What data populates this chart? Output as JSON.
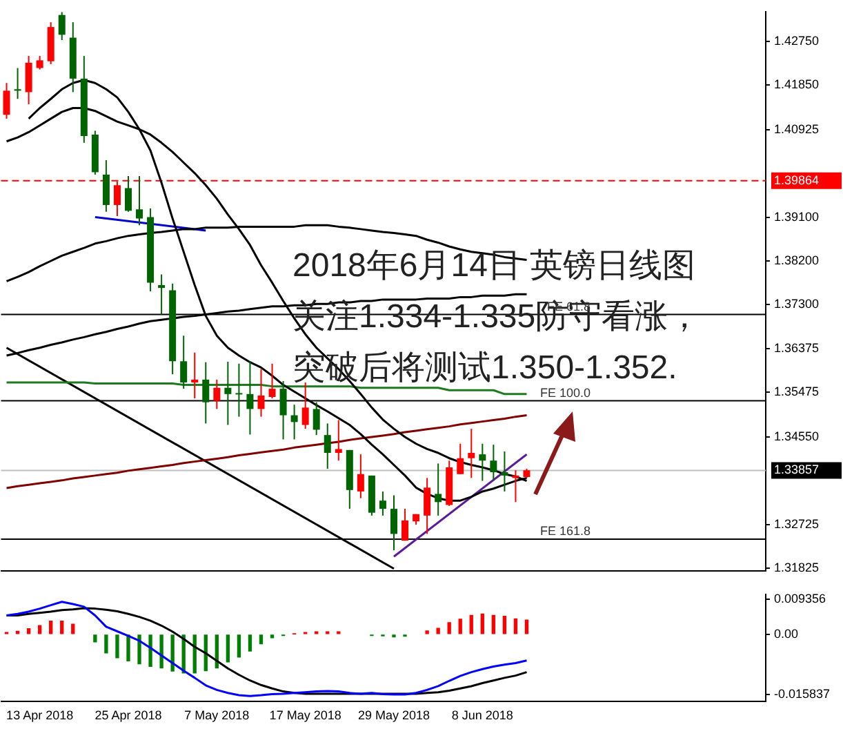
{
  "chart_data": [
    {
      "type": "candlestick",
      "annotations": [
        "2018年6月14日 英镑日线图",
        "关注1.334-1.335防守看涨，",
        "突破后将测试1.350-1.352.",
        {
          "text": "FE 61.8",
          "y": 1.3709
        },
        {
          "text": "FE 100.0",
          "y": 1.353
        },
        {
          "text": "FE 161.8",
          "y": 1.3243
        }
      ],
      "categories": [
        null,
        null,
        null,
        null,
        null,
        null,
        null,
        null,
        null,
        null,
        null,
        null,
        null,
        null,
        null,
        null,
        null,
        null,
        null,
        null,
        null,
        null,
        null,
        null,
        null,
        null,
        null,
        null,
        null,
        null,
        null,
        null,
        null,
        null,
        null,
        null,
        null,
        null,
        null,
        null,
        null,
        null,
        null,
        null,
        null,
        null,
        null,
        null
      ],
      "ohlc": [
        [
          1.4123,
          1.4189,
          1.4115,
          1.4173
        ],
        [
          1.4176,
          1.422,
          1.4156,
          1.4173
        ],
        [
          1.417,
          1.4245,
          1.4145,
          1.4231
        ],
        [
          1.422,
          1.4245,
          1.4217,
          1.4236
        ],
        [
          1.4234,
          1.4315,
          1.4228,
          1.4305
        ],
        [
          1.433,
          1.4336,
          1.4278,
          1.4289
        ],
        [
          1.4283,
          1.4315,
          1.417,
          1.4198
        ],
        [
          1.4198,
          1.4245,
          1.4065,
          1.4079
        ],
        [
          1.4082,
          1.409,
          1.3999,
          1.4004
        ],
        [
          1.3999,
          1.4029,
          1.3922,
          1.3936
        ],
        [
          1.3936,
          1.3985,
          1.3913,
          1.3977
        ],
        [
          1.3971,
          1.3996,
          1.3922,
          1.3924
        ],
        [
          1.3927,
          1.3996,
          1.3894,
          1.3908
        ],
        [
          1.3911,
          1.3929,
          1.3757,
          1.3775
        ],
        [
          1.377,
          1.3792,
          1.3709,
          1.3764
        ],
        [
          1.3759,
          1.3773,
          1.3585,
          1.3612
        ],
        [
          1.3612,
          1.3665,
          1.3555,
          1.3568
        ],
        [
          1.3568,
          1.363,
          1.3535,
          1.3574
        ],
        [
          1.3574,
          1.361,
          1.3483,
          1.3527
        ],
        [
          1.353,
          1.3574,
          1.3513,
          1.3557
        ],
        [
          1.3557,
          1.3611,
          1.348,
          1.3544
        ],
        [
          1.3546,
          1.3607,
          1.3497,
          1.3544
        ],
        [
          1.3544,
          1.3612,
          1.346,
          1.3513
        ],
        [
          1.3513,
          1.3596,
          1.3497,
          1.3541
        ],
        [
          1.3538,
          1.3607,
          1.3535,
          1.3555
        ],
        [
          1.3555,
          1.3571,
          1.345,
          1.35
        ],
        [
          1.35,
          1.3522,
          1.345,
          1.3486
        ],
        [
          1.348,
          1.3568,
          1.3472,
          1.3516
        ],
        [
          1.3513,
          1.3527,
          1.3459,
          1.347
        ],
        [
          1.3459,
          1.3483,
          1.3389,
          1.3422
        ],
        [
          1.3422,
          1.349,
          1.3406,
          1.343
        ],
        [
          1.3428,
          1.3428,
          1.3306,
          1.3345
        ],
        [
          1.3342,
          1.3419,
          1.3328,
          1.3378
        ],
        [
          1.3375,
          1.3375,
          1.3292,
          1.3298
        ],
        [
          1.3323,
          1.3342,
          1.3292,
          1.3306
        ],
        [
          1.3306,
          1.3334,
          1.322,
          1.3254
        ],
        [
          1.324,
          1.3306,
          1.324,
          1.3282
        ],
        [
          1.328,
          1.3295,
          1.3273,
          1.3295
        ],
        [
          1.3292,
          1.337,
          1.3254,
          1.335
        ],
        [
          1.3337,
          1.34,
          1.3292,
          1.332
        ],
        [
          1.3314,
          1.3406,
          1.3312,
          1.3392
        ],
        [
          1.3378,
          1.3441,
          1.3378,
          1.3411
        ],
        [
          1.3411,
          1.3472,
          1.337,
          1.3422
        ],
        [
          1.3419,
          1.3441,
          1.3364,
          1.3406
        ],
        [
          1.3406,
          1.3439,
          1.3364,
          1.3382
        ],
        [
          1.3382,
          1.3425,
          1.3342,
          1.3375
        ],
        [
          1.337,
          1.3386,
          1.332,
          1.3375
        ],
        [
          1.3372,
          1.3389,
          1.337,
          1.3386
        ]
      ],
      "colors": [
        "#ff0000",
        "#006400",
        "#ff0000",
        "#ff0000",
        "#ff0000",
        "#006400",
        "#006400",
        "#006400",
        "#006400",
        "#006400",
        "#ff0000",
        "#006400",
        "#006400",
        "#006400",
        "#006400",
        "#006400",
        "#006400",
        "#ff0000",
        "#006400",
        "#ff0000",
        "#006400",
        "#006400",
        "#006400",
        "#ff0000",
        "#ff0000",
        "#006400",
        "#006400",
        "#ff0000",
        "#006400",
        "#006400",
        "#ff0000",
        "#006400",
        "#ff0000",
        "#006400",
        "#006400",
        "#006400",
        "#ff0000",
        "#ff0000",
        "#ff0000",
        "#006400",
        "#ff0000",
        "#ff0000",
        "#ff0000",
        "#006400",
        "#006400",
        "#006400",
        "#ff0000",
        "#ff0000"
      ],
      "series": [
        {
          "type": "line",
          "color": "#000000",
          "values": [
            null,
            null,
            1.4115,
            1.4137,
            1.4156,
            1.4176,
            1.4189,
            1.4195,
            1.4189,
            1.4176,
            1.4159,
            1.4129,
            1.4093,
            1.4049,
            1.3982,
            1.3908,
            1.3839,
            1.377,
            1.3706,
            1.3665,
            1.364,
            1.3624,
            1.361,
            1.3599,
            1.3582,
            1.3563,
            1.3549,
            1.3535,
            1.3521,
            1.3508,
            1.3494,
            1.348,
            1.3461,
            1.3439,
            1.3419,
            1.3397,
            1.3375,
            1.335,
            1.3337,
            1.3328,
            1.3323,
            1.3323,
            1.3331,
            1.3342,
            1.3348,
            1.3356,
            1.3364,
            1.337
          ]
        },
        {
          "type": "line",
          "color": "#000000",
          "values": [
            1.4068,
            1.4076,
            1.4087,
            1.4101,
            1.4115,
            1.4129,
            1.4137,
            1.4137,
            1.4131,
            1.412,
            1.4109,
            1.4101,
            1.4093,
            1.4082,
            1.4065,
            1.4046,
            1.4024,
            1.4002,
            1.3977,
            1.3949,
            1.3916,
            1.3886,
            1.3853,
            1.3811,
            1.3775,
            1.3737,
            1.3701,
            1.3668,
            1.364,
            1.3618,
            1.3596,
            1.3571,
            1.3544,
            1.3516,
            1.3491,
            1.3472,
            1.3455,
            1.3441,
            1.343,
            1.3422,
            1.3411,
            1.3403,
            1.3397,
            1.3392,
            1.3386,
            1.3378,
            1.3373,
            1.3364
          ]
        },
        {
          "type": "line",
          "color": "#000000",
          "values": [
            1.3778,
            1.3787,
            1.3797,
            1.3809,
            1.382,
            1.3831,
            1.3839,
            1.3847,
            1.3856,
            1.3861,
            1.3867,
            1.3872,
            1.3875,
            1.3878,
            1.388,
            1.3883,
            1.3886,
            1.3886,
            1.3889,
            1.3889,
            1.3889,
            1.3891,
            1.3891,
            1.3891,
            1.3891,
            1.3891,
            1.3891,
            1.3894,
            1.3894,
            1.3894,
            1.3891,
            1.3889,
            1.3886,
            1.3883,
            1.388,
            1.3878,
            1.3875,
            1.3872,
            1.3864,
            1.3858,
            1.385,
            1.3844,
            1.3839,
            1.3836,
            1.3833,
            1.3828,
            1.3825,
            1.3822
          ]
        },
        {
          "type": "line",
          "color": "#000000",
          "values": [
            1.3624,
            1.3629,
            1.3635,
            1.364,
            1.3646,
            1.3651,
            1.3657,
            1.3662,
            1.3668,
            1.3673,
            1.3679,
            1.3684,
            1.369,
            1.3695,
            1.3698,
            1.3701,
            1.3704,
            1.3706,
            1.3709,
            1.3712,
            1.3715,
            1.3717,
            1.372,
            1.3723,
            1.3726,
            1.3726,
            1.3728,
            1.3728,
            1.3731,
            1.3731,
            1.3734,
            1.3734,
            1.3737,
            1.3737,
            1.374,
            1.374,
            1.374,
            1.374,
            1.3742,
            1.3742,
            1.3742,
            1.3745,
            1.3745,
            1.3748,
            1.3748,
            1.3748,
            1.3751,
            1.3751
          ]
        },
        {
          "type": "line",
          "color": "#1e7a1e",
          "values": [
            1.3568,
            1.3568,
            1.3568,
            1.3568,
            1.3568,
            1.3568,
            1.3568,
            1.3568,
            1.3566,
            1.3566,
            1.3566,
            1.3566,
            1.3566,
            1.3566,
            1.3566,
            1.3566,
            1.3563,
            1.3563,
            1.3563,
            1.3563,
            1.3563,
            1.3563,
            1.3563,
            1.3563,
            1.356,
            1.356,
            1.356,
            1.356,
            1.356,
            1.356,
            1.356,
            1.356,
            1.3557,
            1.3557,
            1.3557,
            1.3557,
            1.3557,
            1.3557,
            1.3557,
            1.3557,
            1.3552,
            1.3552,
            1.3552,
            1.3552,
            1.3552,
            1.3544,
            1.3544,
            1.3544
          ]
        },
        {
          "type": "line",
          "color": "#800000",
          "values": [
            1.3349,
            1.3353,
            1.3356,
            1.3359,
            1.3362,
            1.3365,
            1.3369,
            1.3372,
            1.3375,
            1.3378,
            1.3381,
            1.3385,
            1.3388,
            1.3391,
            1.3394,
            1.3397,
            1.3401,
            1.3404,
            1.3407,
            1.341,
            1.3413,
            1.3417,
            1.342,
            1.3423,
            1.3426,
            1.3429,
            1.3433,
            1.3436,
            1.3439,
            1.3442,
            1.3445,
            1.3449,
            1.3452,
            1.3455,
            1.3458,
            1.3461,
            1.3465,
            1.3468,
            1.3471,
            1.3474,
            1.3477,
            1.3481,
            1.3484,
            1.3487,
            1.349,
            1.3493,
            1.3497,
            1.35
          ]
        },
        {
          "type": "line",
          "color": "#0000cd",
          "values": [
            null,
            null,
            null,
            null,
            null,
            null,
            null,
            null,
            1.3911,
            null,
            null,
            null,
            null,
            null,
            null,
            null,
            null,
            null,
            1.3883,
            null,
            null,
            null,
            null,
            null,
            null,
            null,
            null,
            null,
            null,
            null,
            null,
            null,
            null,
            null,
            null,
            null,
            null,
            null,
            null,
            null,
            null,
            null,
            null,
            null,
            null,
            null,
            null,
            null
          ]
        },
        {
          "type": "line",
          "color": "#000000",
          "values": [
            1.364,
            null,
            null,
            null,
            null,
            null,
            null,
            null,
            null,
            null,
            null,
            null,
            null,
            null,
            null,
            null,
            null,
            null,
            null,
            null,
            null,
            null,
            null,
            null,
            null,
            null,
            null,
            null,
            null,
            null,
            null,
            null,
            null,
            null,
            null,
            1.3182,
            null,
            null,
            null,
            null,
            null,
            null,
            null,
            null,
            null,
            null,
            null,
            null
          ]
        },
        {
          "type": "line",
          "color": "#5a1a9a",
          "values": [
            null,
            null,
            null,
            null,
            null,
            null,
            null,
            null,
            null,
            null,
            null,
            null,
            null,
            null,
            null,
            null,
            null,
            null,
            null,
            null,
            null,
            null,
            null,
            null,
            null,
            null,
            null,
            null,
            null,
            null,
            null,
            null,
            null,
            null,
            null,
            1.3207,
            null,
            null,
            null,
            null,
            null,
            null,
            null,
            null,
            null,
            null,
            null,
            1.3419
          ]
        }
      ],
      "ylim": [
        1.3177,
        1.4337
      ],
      "yticks": [
        {
          "value": 1.31825,
          "label": "1.31825"
        },
        {
          "value": 1.32725,
          "label": "1.32725"
        },
        {
          "value": 1.3455,
          "label": "1.34550"
        },
        {
          "value": 1.35475,
          "label": "1.35475"
        },
        {
          "value": 1.36375,
          "label": "1.36375"
        },
        {
          "value": 1.373,
          "label": "1.37300"
        },
        {
          "value": 1.382,
          "label": "1.38200"
        },
        {
          "value": 1.391,
          "label": "1.39100"
        },
        {
          "value": 1.40925,
          "label": "1.40925"
        },
        {
          "value": 1.4185,
          "label": "1.41850"
        },
        {
          "value": 1.4275,
          "label": "1.42750"
        }
      ],
      "ref_lines": [
        {
          "axis": "y",
          "value": 1.3709,
          "color": "#000000"
        },
        {
          "axis": "y",
          "value": 1.353,
          "color": "#000000"
        },
        {
          "axis": "y",
          "value": 1.3243,
          "color": "#000000"
        },
        {
          "axis": "y",
          "value": 1.39864,
          "label": "1.39864",
          "color": "#ff0000",
          "line_style": "dashed"
        },
        {
          "axis": "y",
          "value": 1.33857,
          "label": "1.33857",
          "color": "#c0c0c0"
        }
      ],
      "tick_labels": "y"
    },
    {
      "type": "bar",
      "categories": [
        null,
        null,
        null,
        "13 Apr 2018",
        null,
        null,
        null,
        null,
        null,
        null,
        null,
        "25 Apr 2018",
        null,
        null,
        null,
        null,
        null,
        null,
        null,
        "7 May 2018",
        null,
        null,
        null,
        null,
        null,
        null,
        null,
        "17 May 2018",
        null,
        null,
        null,
        null,
        null,
        null,
        null,
        "29 May 2018",
        null,
        null,
        null,
        null,
        null,
        null,
        null,
        "8 Jun 2018",
        null,
        null,
        null,
        null
      ],
      "series": [
        {
          "type": "bar",
          "colors": [
            "#ff0000",
            "#ff0000",
            "#ff0000",
            "#ff0000",
            "#ff0000",
            "#ff0000",
            "#ff0000",
            "#ff0000",
            "#008000",
            "#008000",
            "#008000",
            "#008000",
            "#008000",
            "#008000",
            "#008000",
            "#008000",
            "#008000",
            "#008000",
            "#008000",
            "#008000",
            "#008000",
            "#008000",
            "#008000",
            "#008000",
            "#008000",
            "#008000",
            "#ff0000",
            "#ff0000",
            "#ff0000",
            "#ff0000",
            "#ff0000",
            "#ff0000",
            "#ff0000",
            "#008000",
            "#008000",
            "#008000",
            "#008000",
            "#ff0000",
            "#ff0000",
            "#ff0000",
            "#ff0000",
            "#ff0000",
            "#ff0000",
            "#ff0000",
            "#ff0000",
            "#ff0000",
            "#ff0000",
            "#ff0000"
          ],
          "values": [
            0.0005,
            0.0008,
            0.0015,
            0.0023,
            0.0035,
            0.0035,
            0.0027,
            null,
            -0.002,
            -0.0049,
            -0.0062,
            -0.007,
            -0.0078,
            -0.0085,
            -0.0089,
            -0.0097,
            -0.0102,
            -0.0102,
            -0.0096,
            -0.0089,
            -0.0073,
            -0.006,
            -0.0044,
            -0.0025,
            -0.0009,
            -0.0003,
            0.0001,
            0.0005,
            0.0007,
            0.0007,
            0.0007,
            null,
            null,
            -0.0003,
            -0.0004,
            -0.0007,
            -0.0005,
            null,
            0.0009,
            0.0016,
            0.0031,
            0.004,
            0.005,
            0.0054,
            0.005,
            0.0048,
            0.0041,
            0.0038
          ]
        },
        {
          "type": "line",
          "color": "#0000ff",
          "values": [
            0.005,
            0.0054,
            0.006,
            0.0068,
            0.0077,
            0.0086,
            0.008,
            0.0073,
            0.005,
            0.002,
            0.0008,
            -0.0004,
            -0.0017,
            -0.0036,
            -0.0056,
            -0.0076,
            -0.0096,
            -0.0115,
            -0.0135,
            -0.0147,
            -0.0155,
            -0.0161,
            -0.0163,
            -0.0161,
            -0.0158,
            -0.0157,
            -0.0155,
            -0.0153,
            -0.0151,
            -0.015,
            -0.0151,
            -0.0155,
            -0.0157,
            -0.0155,
            -0.0158,
            -0.0159,
            -0.0159,
            -0.0155,
            -0.0147,
            -0.0137,
            -0.0123,
            -0.011,
            -0.01,
            -0.0092,
            -0.0085,
            -0.008,
            -0.0076,
            -0.0069
          ]
        },
        {
          "type": "line",
          "color": "#000000",
          "values": [
            0.005,
            0.005,
            0.0054,
            0.0057,
            0.006,
            0.0064,
            0.0066,
            0.0069,
            0.0068,
            0.0065,
            0.0061,
            0.0054,
            0.0046,
            0.0036,
            0.0023,
            0.0007,
            -0.0012,
            -0.0033,
            -0.005,
            -0.007,
            -0.009,
            -0.0107,
            -0.0122,
            -0.0134,
            -0.0143,
            -0.0151,
            -0.0155,
            -0.0157,
            -0.0157,
            -0.0157,
            -0.0157,
            -0.0157,
            -0.0157,
            -0.0157,
            -0.0157,
            -0.0157,
            -0.0157,
            -0.0157,
            -0.0155,
            -0.0153,
            -0.0149,
            -0.0143,
            -0.0137,
            -0.0129,
            -0.0122,
            -0.0115,
            -0.0109,
            -0.01
          ]
        }
      ],
      "ylim": [
        -0.0178,
        0.0106
      ],
      "yticks": [
        {
          "value": -0.015837,
          "label": "-0.015837"
        },
        {
          "value": 0,
          "label": "0.00"
        },
        {
          "value": 0.009356,
          "label": "0.009356"
        }
      ]
    }
  ]
}
